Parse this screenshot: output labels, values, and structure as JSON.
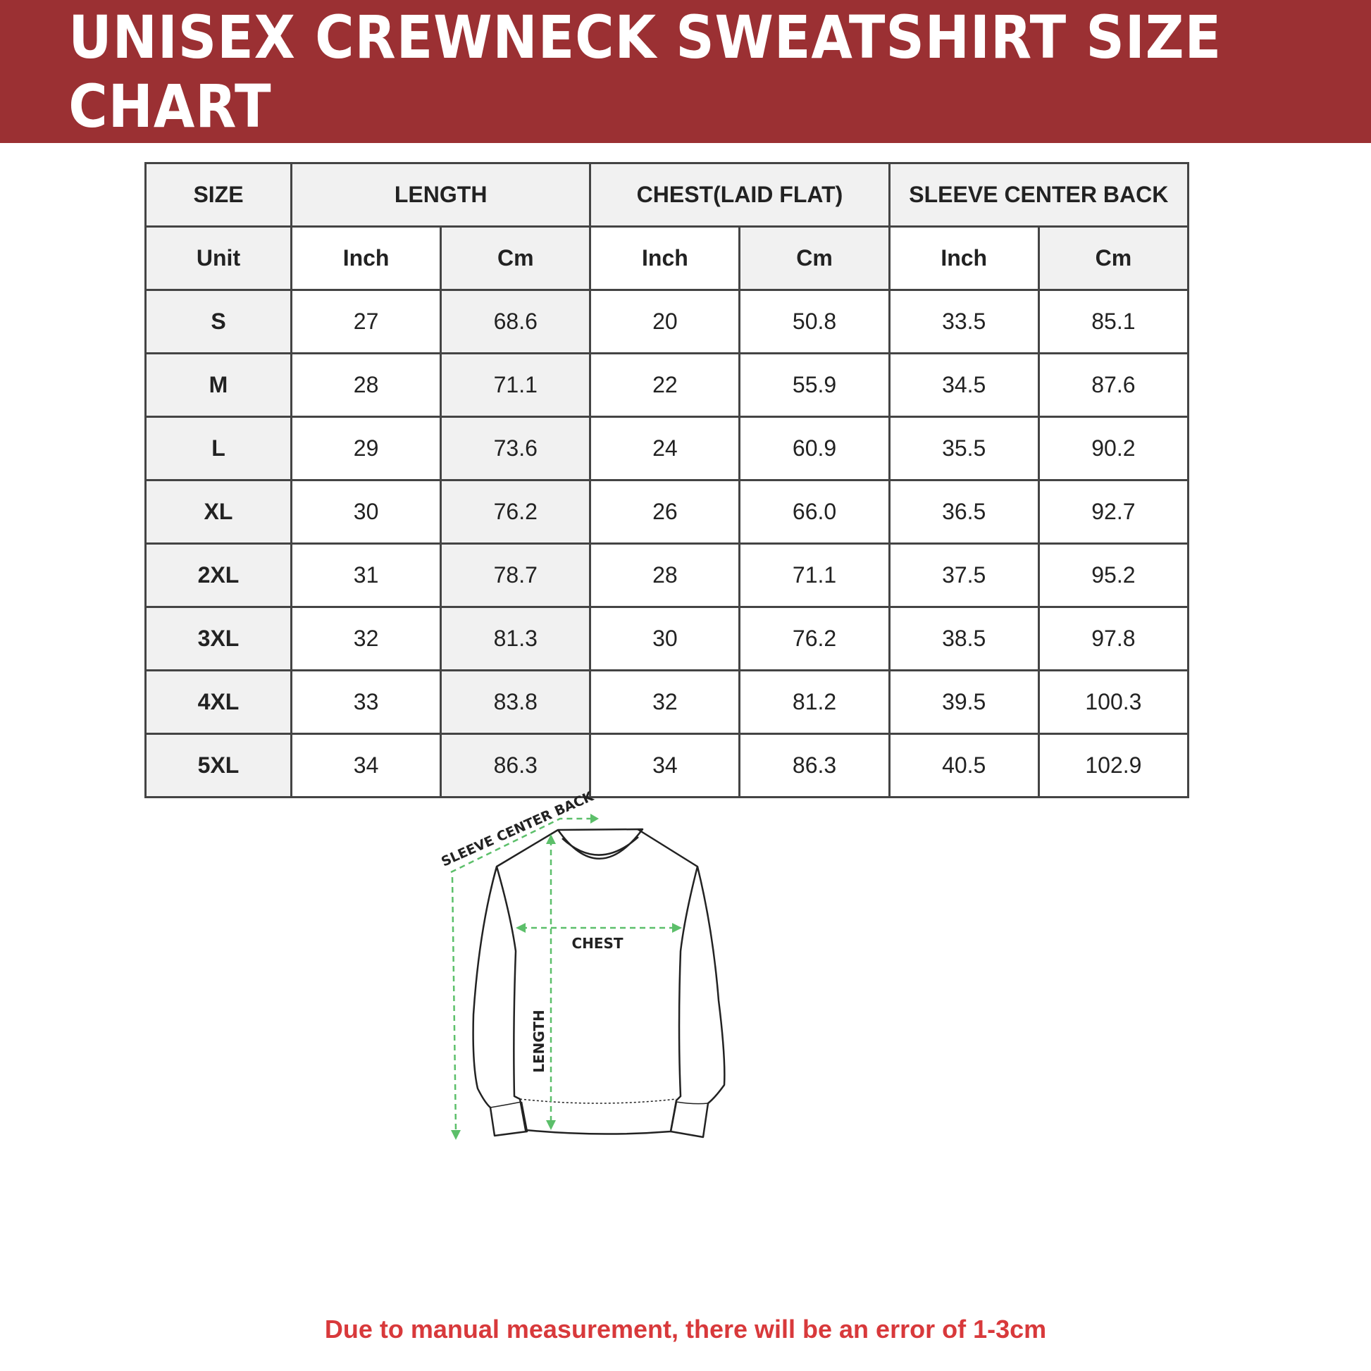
{
  "title": "UNISEX CREWNECK SWEATSHIRT SIZE CHART",
  "colors": {
    "banner": "#9b3033",
    "arrow": "#5cbf6a",
    "note": "#d8393b"
  },
  "table": {
    "headers": [
      "SIZE",
      "LENGTH",
      "CHEST(LAID FLAT)",
      "SLEEVE CENTER BACK"
    ],
    "unit_row": [
      "Unit",
      "Inch",
      "Cm",
      "Inch",
      "Cm",
      "Inch",
      "Cm"
    ],
    "rows": [
      [
        "S",
        "27",
        "68.6",
        "20",
        "50.8",
        "33.5",
        "85.1"
      ],
      [
        "M",
        "28",
        "71.1",
        "22",
        "55.9",
        "34.5",
        "87.6"
      ],
      [
        "L",
        "29",
        "73.6",
        "24",
        "60.9",
        "35.5",
        "90.2"
      ],
      [
        "XL",
        "30",
        "76.2",
        "26",
        "66.0",
        "36.5",
        "92.7"
      ],
      [
        "2XL",
        "31",
        "78.7",
        "28",
        "71.1",
        "37.5",
        "95.2"
      ],
      [
        "3XL",
        "32",
        "81.3",
        "30",
        "76.2",
        "38.5",
        "97.8"
      ],
      [
        "4XL",
        "33",
        "83.8",
        "32",
        "81.2",
        "39.5",
        "100.3"
      ],
      [
        "5XL",
        "34",
        "86.3",
        "34",
        "86.3",
        "40.5",
        "102.9"
      ]
    ]
  },
  "diagram": {
    "sleeve_label": "SLEEVE CENTER BACK",
    "chest_label": "CHEST",
    "length_label": "LENGTH"
  },
  "note": "Due to manual measurement, there will be an error of 1-3cm"
}
